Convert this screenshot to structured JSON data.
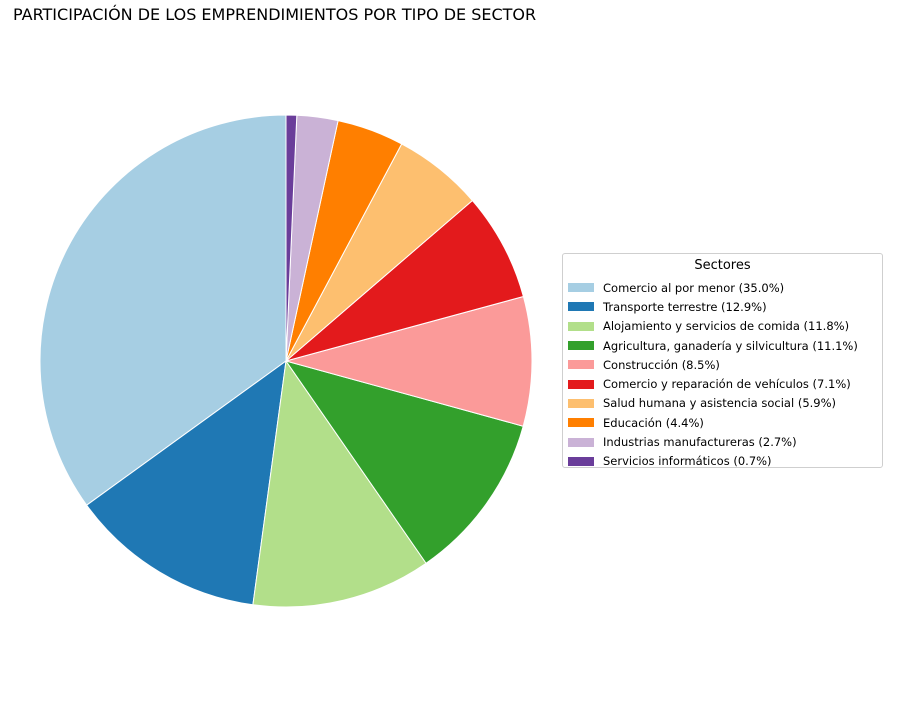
{
  "chart_data": {
    "type": "pie",
    "title": "PARTICIPACIÓN DE LOS EMPRENDIMIENTOS POR TIPO DE SECTOR",
    "legend_title": "Sectores",
    "legend_position": "right",
    "start_angle_deg": 90,
    "direction": "counterclockwise",
    "slices": [
      {
        "label": "Comercio al por menor (35.0%)",
        "value": 35.0,
        "color": "#a6cee3"
      },
      {
        "label": "Transporte terrestre (12.9%)",
        "value": 12.9,
        "color": "#1f78b4"
      },
      {
        "label": "Alojamiento y servicios de comida (11.8%)",
        "value": 11.8,
        "color": "#b2df8a"
      },
      {
        "label": "Agricultura, ganadería y silvicultura (11.1%)",
        "value": 11.1,
        "color": "#33a02c"
      },
      {
        "label": "Construcción (8.5%)",
        "value": 8.5,
        "color": "#fb9a99"
      },
      {
        "label": "Comercio y reparación de vehículos (7.1%)",
        "value": 7.1,
        "color": "#e31a1c"
      },
      {
        "label": "Salud humana y asistencia social (5.9%)",
        "value": 5.9,
        "color": "#fdbf6f"
      },
      {
        "label": "Educación (4.4%)",
        "value": 4.4,
        "color": "#ff7f00"
      },
      {
        "label": "Industrias manufactureras (2.7%)",
        "value": 2.7,
        "color": "#cab2d6"
      },
      {
        "label": "Servicios informáticos (0.7%)",
        "value": 0.7,
        "color": "#6a3d9a"
      }
    ]
  }
}
